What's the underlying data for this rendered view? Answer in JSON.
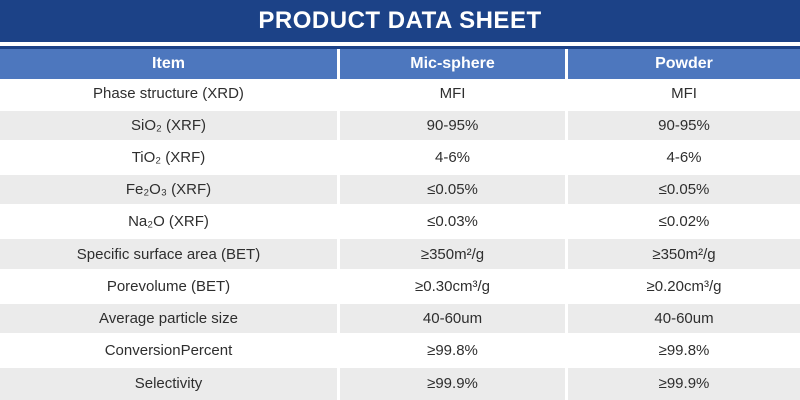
{
  "title_bar": {
    "title": "PRODUCT DATA SHEET"
  },
  "colors": {
    "title_bar_navy": "#1c4287",
    "header_row_blue": "#4d77be",
    "alt_row_gray": "#ebebeb",
    "header_text": "#ffffff",
    "body_text": "#2e2e2e"
  },
  "table": {
    "columns": [
      {
        "label": "Item"
      },
      {
        "label": "Mic-sphere"
      },
      {
        "label": "Powder"
      }
    ],
    "rows": [
      {
        "item": "Phase structure (XRD)",
        "values": [
          "MFI",
          "MFI"
        ]
      },
      {
        "item": "SiO₂ (XRF)",
        "values": [
          "90-95%",
          "90-95%"
        ]
      },
      {
        "item": "TiO₂ (XRF)",
        "values": [
          "4-6%",
          "4-6%"
        ]
      },
      {
        "item": "Fe₂O₃ (XRF)",
        "values": [
          "≤0.05%",
          "≤0.05%"
        ]
      },
      {
        "item": "Na₂O (XRF)",
        "values": [
          "≤0.03%",
          "≤0.02%"
        ]
      },
      {
        "item": "Specific surface area (BET)",
        "values": [
          "≥350m²/g",
          "≥350m²/g"
        ]
      },
      {
        "item": "Porevolume (BET)",
        "values": [
          "≥0.30cm³/g",
          "≥0.20cm³/g"
        ]
      },
      {
        "item": "Average particle size",
        "values": [
          "40-60um",
          "40-60um"
        ]
      },
      {
        "item": "ConversionPercent",
        "values": [
          "≥99.8%",
          "≥99.8%"
        ]
      },
      {
        "item": "Selectivity",
        "values": [
          "≥99.9%",
          "≥99.9%"
        ]
      }
    ]
  }
}
